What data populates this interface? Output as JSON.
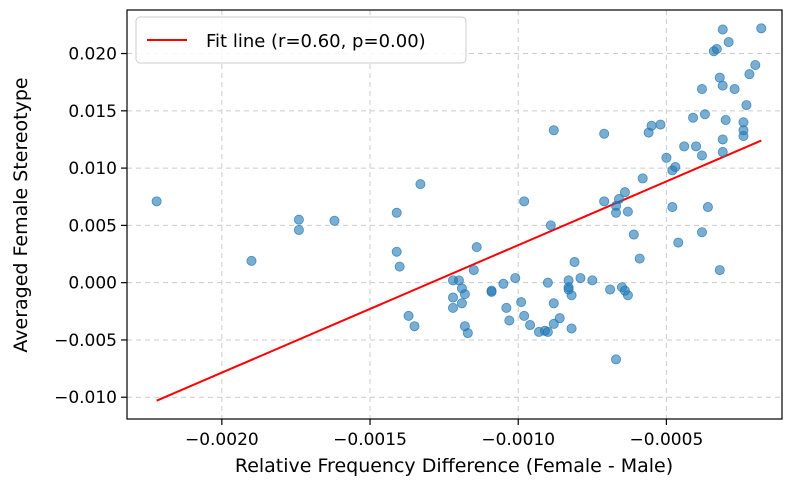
{
  "chart_data": {
    "type": "scatter",
    "title": "",
    "xlabel": "Relative Frequency Difference (Female - Male)",
    "ylabel": "Averaged Female Stereotype",
    "xlim": [
      -0.00232,
      -0.00011
    ],
    "ylim": [
      -0.0119,
      0.0238
    ],
    "x_ticks": [
      -0.002,
      -0.0015,
      -0.001,
      -0.0005
    ],
    "x_tick_labels": [
      "−0.0020",
      "−0.0015",
      "−0.0010",
      "−0.0005"
    ],
    "y_ticks": [
      -0.01,
      -0.005,
      0.0,
      0.005,
      0.01,
      0.015,
      0.02
    ],
    "y_tick_labels": [
      "−0.010",
      "−0.005",
      "0.000",
      "0.005",
      "0.010",
      "0.015",
      "0.020"
    ],
    "grid": true,
    "legend_position": "top-left",
    "colors": {
      "points": "#1f77b4",
      "fit_line": "#ff0000",
      "grid": "#cccccc"
    },
    "fit_line": {
      "label": "Fit line (r=0.60, p=0.00)",
      "x": [
        -0.00222,
        -0.00018
      ],
      "y": [
        -0.0103,
        0.0124
      ]
    },
    "series": [
      {
        "name": "points",
        "points": [
          [
            -0.00222,
            0.0071
          ],
          [
            -0.0019,
            0.0019
          ],
          [
            -0.00174,
            0.0055
          ],
          [
            -0.00174,
            0.0046
          ],
          [
            -0.00162,
            0.0054
          ],
          [
            -0.00141,
            0.0061
          ],
          [
            -0.00141,
            0.0027
          ],
          [
            -0.00133,
            0.0086
          ],
          [
            -0.00137,
            -0.0029
          ],
          [
            -0.00135,
            -0.0038
          ],
          [
            -0.0014,
            0.0014
          ],
          [
            -0.00122,
            0.0002
          ],
          [
            -0.00122,
            -0.0013
          ],
          [
            -0.0012,
            0.0002
          ],
          [
            -0.00119,
            -0.0005
          ],
          [
            -0.00118,
            -0.001
          ],
          [
            -0.00122,
            -0.0022
          ],
          [
            -0.00119,
            -0.0018
          ],
          [
            -0.00118,
            -0.0038
          ],
          [
            -0.00117,
            -0.0044
          ],
          [
            -0.00115,
            0.0011
          ],
          [
            -0.00114,
            0.0031
          ],
          [
            -0.00109,
            -0.0007
          ],
          [
            -0.00109,
            -0.0008
          ],
          [
            -0.00105,
            -0.0001
          ],
          [
            -0.00104,
            -0.0022
          ],
          [
            -0.00103,
            -0.0033
          ],
          [
            -0.00101,
            0.0004
          ],
          [
            -0.00099,
            -0.0017
          ],
          [
            -0.00098,
            0.0071
          ],
          [
            -0.00098,
            -0.0029
          ],
          [
            -0.00096,
            -0.0037
          ],
          [
            -0.00093,
            -0.0043
          ],
          [
            -0.00091,
            -0.0042
          ],
          [
            -0.0009,
            -0.0043
          ],
          [
            -0.0009,
            0.0
          ],
          [
            -0.00089,
            0.005
          ],
          [
            -0.00088,
            0.0133
          ],
          [
            -0.00088,
            -0.0018
          ],
          [
            -0.00088,
            -0.0036
          ],
          [
            -0.00086,
            -0.0031
          ],
          [
            -0.00083,
            0.0002
          ],
          [
            -0.00083,
            -0.0004
          ],
          [
            -0.00083,
            -0.0006
          ],
          [
            -0.00082,
            -0.0011
          ],
          [
            -0.00082,
            -0.004
          ],
          [
            -0.00081,
            0.0018
          ],
          [
            -0.00079,
            0.0004
          ],
          [
            -0.00075,
            0.0002
          ],
          [
            -0.00071,
            0.0071
          ],
          [
            -0.00071,
            0.013
          ],
          [
            -0.00069,
            -0.0006
          ],
          [
            -0.00067,
            0.0067
          ],
          [
            -0.00067,
            0.0061
          ],
          [
            -0.00066,
            0.0073
          ],
          [
            -0.00065,
            -0.0004
          ],
          [
            -0.00064,
            -0.0007
          ],
          [
            -0.00064,
            0.0079
          ],
          [
            -0.00063,
            0.0062
          ],
          [
            -0.00063,
            -0.0011
          ],
          [
            -0.00061,
            0.0042
          ],
          [
            -0.00059,
            0.0021
          ],
          [
            -0.00058,
            0.0091
          ],
          [
            -0.00056,
            0.0131
          ],
          [
            -0.00055,
            0.0137
          ],
          [
            -0.00052,
            0.0138
          ],
          [
            -0.0005,
            0.0109
          ],
          [
            -0.00048,
            0.0098
          ],
          [
            -0.00048,
            0.0066
          ],
          [
            -0.00047,
            0.0101
          ],
          [
            -0.00046,
            0.0035
          ],
          [
            -0.00044,
            0.0119
          ],
          [
            -0.00041,
            0.0144
          ],
          [
            -0.0004,
            0.0119
          ],
          [
            -0.00038,
            0.0169
          ],
          [
            -0.00038,
            0.0111
          ],
          [
            -0.00038,
            0.0044
          ],
          [
            -0.00037,
            0.0147
          ],
          [
            -0.00036,
            0.0066
          ],
          [
            -0.00034,
            0.0202
          ],
          [
            -0.00033,
            0.0204
          ],
          [
            -0.00031,
            0.0221
          ],
          [
            -0.00032,
            0.0179
          ],
          [
            -0.00032,
            0.0011
          ],
          [
            -0.00031,
            0.0172
          ],
          [
            -0.00031,
            0.0125
          ],
          [
            -0.00031,
            0.0114
          ],
          [
            -0.0003,
            0.0142
          ],
          [
            -0.00029,
            0.021
          ],
          [
            -0.00027,
            0.0169
          ],
          [
            -0.00024,
            0.0133
          ],
          [
            -0.00024,
            0.014
          ],
          [
            -0.00024,
            0.0128
          ],
          [
            -0.00023,
            0.0155
          ],
          [
            -0.00022,
            0.0182
          ],
          [
            -0.0002,
            0.019
          ],
          [
            -0.00018,
            0.0222
          ],
          [
            -0.00067,
            -0.0067
          ]
        ]
      }
    ]
  }
}
